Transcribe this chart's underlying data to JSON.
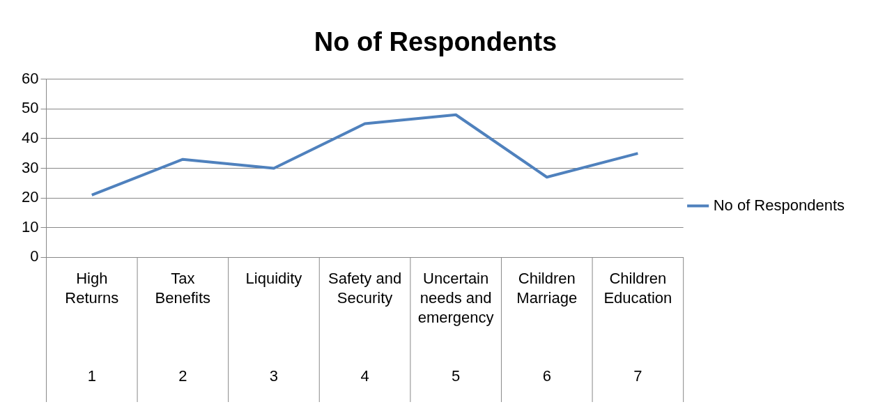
{
  "chart_data": {
    "type": "line",
    "title": "No of Respondents",
    "categories": [
      "High Returns\n1",
      "Tax Benefits\n2",
      "Liquidity\n3",
      "Safety and Security\n4",
      "Uncertain needs and emergency\n5",
      "Children Marriage\n6",
      "Children Education\n7"
    ],
    "series": [
      {
        "name": "No of Respondents",
        "color": "#4f81bd",
        "values": [
          21,
          33,
          30,
          45,
          48,
          27,
          35
        ]
      }
    ],
    "ylim": [
      0,
      60
    ],
    "yticks": [
      0,
      10,
      20,
      30,
      40,
      50,
      60
    ],
    "grid": "y",
    "legend": "right",
    "marker": "none",
    "line_style": "solid"
  }
}
